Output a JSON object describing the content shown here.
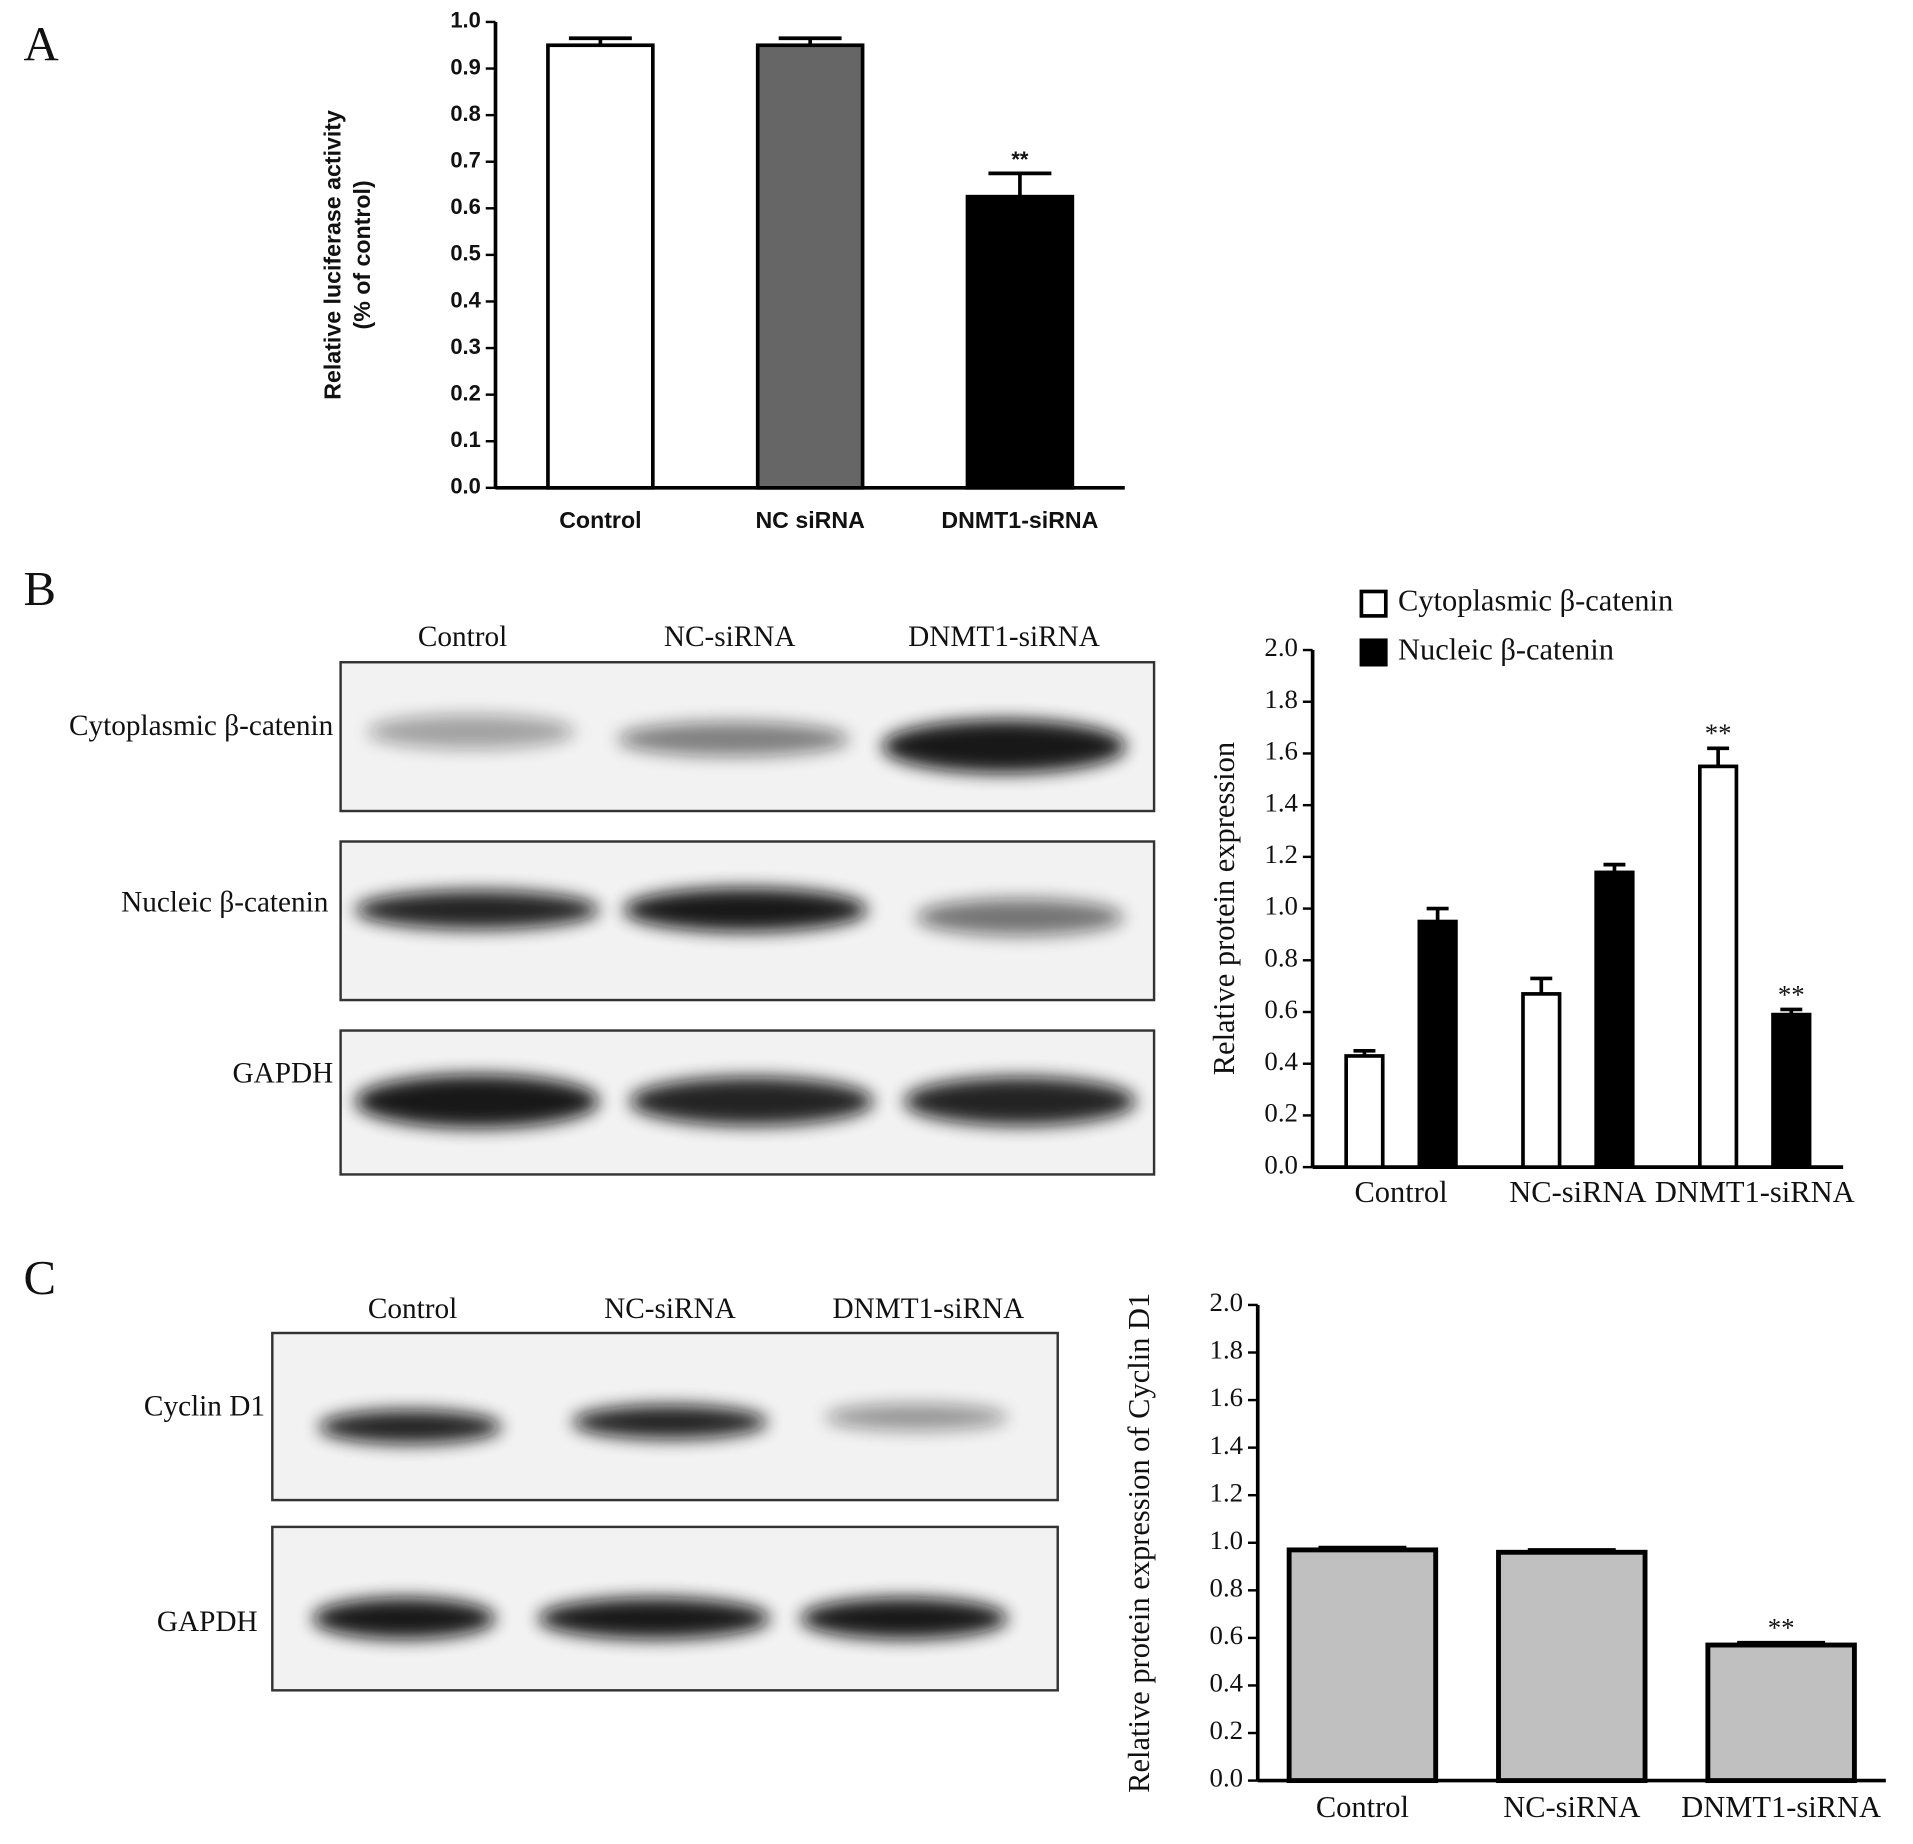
{
  "panels": [
    "A",
    "B",
    "C"
  ],
  "blots": [
    {
      "lanes": [
        "Control",
        "NC-siRNA",
        "DNMT1-siRNA"
      ],
      "rows": [
        "Cytoplasmic β-catenin",
        "Nucleic β-catenin",
        "GAPDH"
      ]
    },
    {
      "lanes": [
        "Control",
        "NC-siRNA",
        "DNMT1-siRNA"
      ],
      "rows": [
        "Cyclin  D1",
        "GAPDH"
      ]
    }
  ],
  "chart_data": [
    {
      "type": "bar",
      "y_label": [
        "Relative luciferase activity",
        "(% of control)"
      ],
      "categories": [
        "Control",
        "NC siRNA",
        "DNMT1-siRNA"
      ],
      "series": [
        {
          "colors": [
            "#ffffff",
            "#666666",
            "#000000"
          ],
          "values": [
            0.95,
            0.95,
            0.625
          ],
          "errors": [
            0.015,
            0.015,
            0.05
          ],
          "annotations": [
            null,
            null,
            "**"
          ]
        }
      ],
      "ylim": [
        0,
        1
      ],
      "yticks": [
        {
          "value": 0,
          "label": "0.0"
        },
        0.1,
        0.2,
        0.3,
        0.4,
        0.5,
        0.6,
        0.7,
        0.8,
        0.9,
        {
          "value": 1,
          "label": "1.0"
        }
      ]
    },
    {
      "type": "bar",
      "y_label": [
        "Relative protein expression"
      ],
      "categories": [
        "Control",
        "NC-siRNA",
        "DNMT1-siRNA"
      ],
      "series": [
        {
          "name": "Cytoplasmic β-catenin",
          "color": "#ffffff",
          "values": [
            0.43,
            0.67,
            1.55
          ],
          "errors": [
            0.02,
            0.06,
            0.07
          ],
          "annotations": [
            null,
            null,
            "**"
          ]
        },
        {
          "name": "Nucleic β-catenin",
          "color": "#000000",
          "values": [
            0.95,
            1.14,
            0.59
          ],
          "errors": [
            0.05,
            0.03,
            0.02
          ],
          "annotations": [
            null,
            null,
            "**"
          ]
        }
      ],
      "legend": "top",
      "ylim": [
        0,
        2
      ],
      "yticks": [
        {
          "value": 0,
          "label": "0.0"
        },
        0.2,
        0.4,
        0.6,
        0.8,
        {
          "value": 1,
          "label": "1.0"
        },
        1.2,
        1.4,
        1.6,
        1.8,
        {
          "value": 2,
          "label": "2.0"
        }
      ]
    },
    {
      "type": "bar",
      "y_label": [
        "Relative protein expression of Cyclin D1"
      ],
      "categories": [
        "Control",
        "NC-siRNA",
        "DNMT1-siRNA"
      ],
      "series": [
        {
          "color": "#c0c0c0",
          "values": [
            0.97,
            0.96,
            0.57
          ],
          "errors": [
            0.01,
            0.01,
            0.01
          ],
          "annotations": [
            null,
            null,
            "**"
          ]
        }
      ],
      "ylim": [
        0,
        2
      ],
      "yticks": [
        {
          "value": 0,
          "label": "0.0"
        },
        0.2,
        0.4,
        0.6,
        0.8,
        {
          "value": 1,
          "label": "1.0"
        },
        1.2,
        1.4,
        1.6,
        1.8,
        {
          "value": 2,
          "label": "2.0"
        }
      ]
    }
  ]
}
